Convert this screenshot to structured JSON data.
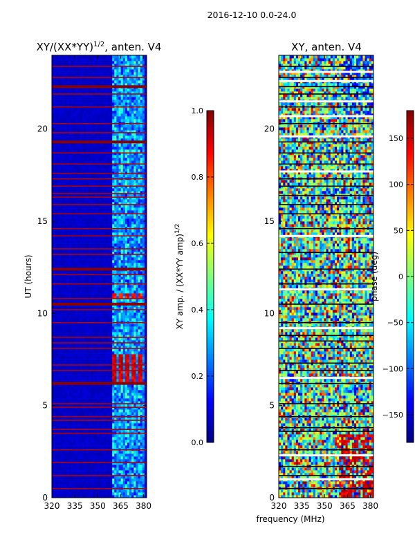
{
  "figure": {
    "suptitle": "2016-12-10 0.0-24.0",
    "shared_xlabel": "frequency (MHz)"
  },
  "chart_data": [
    {
      "type": "heatmap",
      "title_main": "XY/(XX*YY)",
      "title_exp": "1/2",
      "title_tail": ", anten. V4",
      "xlabel": "",
      "ylabel": "UT (hours)",
      "xlim": [
        320,
        382
      ],
      "ylim": [
        0,
        24
      ],
      "xticks": [
        320,
        335,
        350,
        365,
        380
      ],
      "yticks": [
        0,
        5,
        10,
        15,
        20
      ],
      "colormap": "jet",
      "colorbar": {
        "label_main": "XY amp. / (XX*YY amp)",
        "label_exp": "1/2",
        "range": [
          0.0,
          1.0
        ],
        "ticks": [
          "0.0",
          "0.2",
          "0.4",
          "0.6",
          "0.8",
          "1.0"
        ],
        "tick_values": [
          0.0,
          0.2,
          0.4,
          0.6,
          0.8,
          1.0
        ]
      },
      "background_value": 0.05,
      "active_band_mhz": [
        359,
        381
      ],
      "hot_rows_ut": [
        0.5,
        1.2,
        1.9,
        2.6,
        3.5,
        3.7,
        4.2,
        4.4,
        4.9,
        5.1,
        6.2,
        6.9,
        7.2,
        8.1,
        8.4,
        8.7,
        9.5,
        10.2,
        10.5,
        10.8,
        11.6,
        12.1,
        12.4,
        13.2,
        13.5,
        14.2,
        14.6,
        15.4,
        15.9,
        16.3,
        16.5,
        16.9,
        17.3,
        17.6,
        18.1,
        18.7,
        19.3,
        19.8,
        20.3,
        21.2,
        21.9,
        22.3,
        22.8,
        23.4
      ],
      "strong_rows_ut": [
        6.2,
        10.5,
        12.4,
        16.4,
        19.3,
        22.3
      ],
      "band_blocks": [
        {
          "ut_start": 6.1,
          "ut_end": 7.8,
          "value": 0.85
        },
        {
          "ut_start": 10.8,
          "ut_end": 11.1,
          "value": 0.8
        }
      ]
    },
    {
      "type": "heatmap",
      "title": "XY, anten. V4",
      "xlabel": "",
      "ylabel": "",
      "xlim": [
        320,
        382
      ],
      "ylim": [
        0,
        24
      ],
      "xticks": [
        320,
        335,
        350,
        365,
        380
      ],
      "yticks": [
        0,
        5,
        10,
        15,
        20
      ],
      "colormap": "jet",
      "colorbar": {
        "label": "phase (deg)",
        "range": [
          -180,
          180
        ],
        "ticks": [
          "−150",
          "−100",
          "−50",
          "0",
          "50",
          "100",
          "150"
        ],
        "tick_values": [
          -150,
          -100,
          -50,
          0,
          50,
          100,
          150
        ]
      },
      "black_rows_ut": [
        0.5,
        1.2,
        1.7,
        2.6,
        3.6,
        3.8,
        4.4,
        5.1,
        6.2,
        6.9,
        7.3,
        8.1,
        8.5,
        8.8,
        9.5,
        10.5,
        11.6,
        12.4,
        13.3,
        14.6,
        15.4,
        15.9,
        16.4,
        16.9,
        17.3,
        18.1,
        18.7,
        19.3,
        20.3,
        21.2,
        21.9,
        22.3,
        22.8,
        23.4
      ],
      "white_rows_ut": [
        1.0,
        2.3,
        6.5,
        9.2,
        11.3,
        14.2,
        17.7,
        19.6,
        20.7,
        21.5,
        22.6,
        23.1
      ]
    }
  ]
}
